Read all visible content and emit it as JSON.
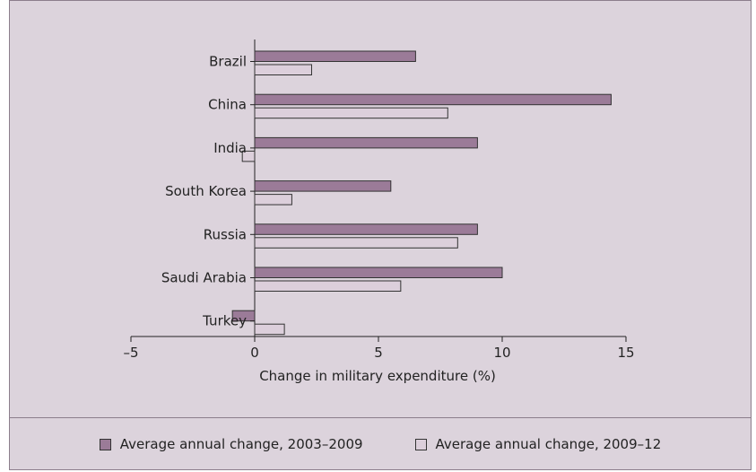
{
  "chart_data": {
    "type": "bar",
    "orientation": "horizontal",
    "categories": [
      "Brazil",
      "China",
      "India",
      "South Korea",
      "Russia",
      "Saudi Arabia",
      "Turkey"
    ],
    "series": [
      {
        "name": "Average annual change, 2003–2009",
        "color": "#9b7b98",
        "values": [
          6.5,
          14.4,
          9.0,
          5.5,
          9.0,
          10.0,
          -0.9
        ]
      },
      {
        "name": "Average annual change, 2009–12",
        "color": "#dccfdb",
        "values": [
          2.3,
          7.8,
          -0.5,
          1.5,
          8.2,
          5.9,
          1.2
        ]
      }
    ],
    "xlabel": "Change in military expenditure (%)",
    "xlim": [
      -5,
      15
    ],
    "xticks": [
      -5,
      0,
      5,
      10,
      15
    ],
    "xtick_labels": [
      "–5",
      "0",
      "5",
      "10",
      "15"
    ],
    "grid": false,
    "legend_position": "bottom"
  }
}
